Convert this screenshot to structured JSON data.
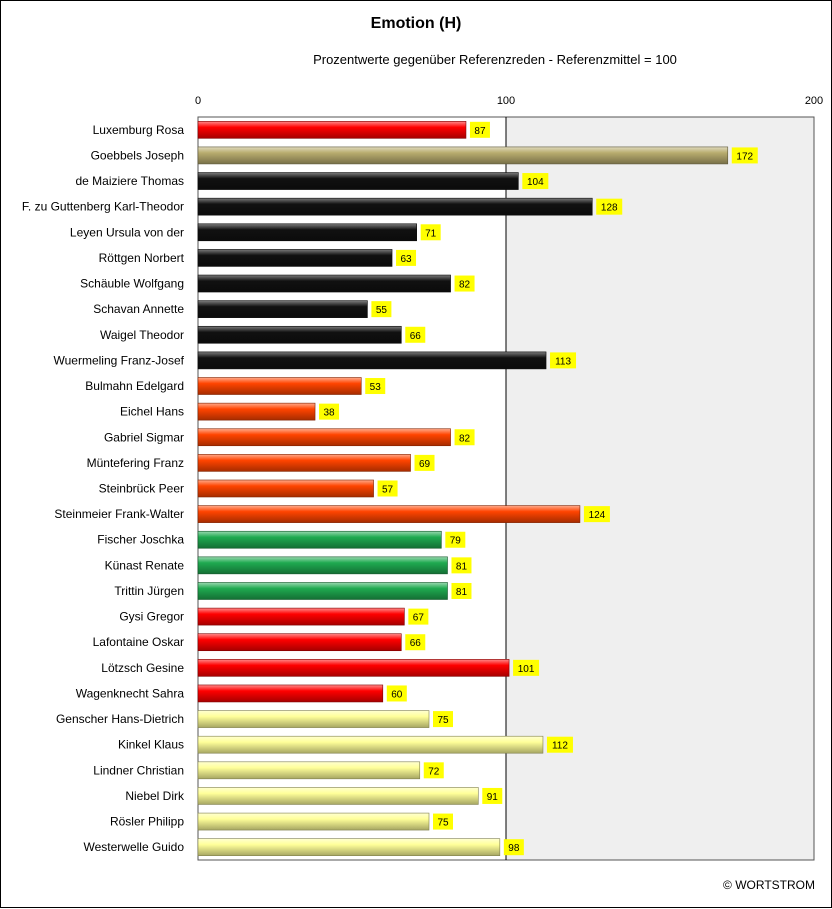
{
  "chart_data": {
    "type": "bar",
    "orientation": "horizontal",
    "title": "Emotion (H)",
    "subtitle": "Prozentwerte  gegenüber Referenzreden - Referenzmittel = 100",
    "xlim": [
      0,
      200
    ],
    "xticks": [
      0,
      100,
      200
    ],
    "reference_value": 100,
    "grid": false,
    "credit": "© WORTSTROM",
    "series": [
      {
        "categories": [
          "Luxemburg Rosa",
          "Goebbels Joseph",
          "de Maiziere Thomas",
          "F. zu Guttenberg Karl-Theodor",
          "Leyen Ursula von der",
          "Röttgen Norbert",
          "Schäuble Wolfgang",
          "Schavan Annette",
          "Waigel Theodor",
          "Wuermeling Franz-Josef",
          "Bulmahn Edelgard",
          "Eichel Hans",
          "Gabriel Sigmar",
          "Müntefering Franz",
          "Steinbrück Peer",
          "Steinmeier Frank-Walter",
          "Fischer Joschka",
          "Künast Renate",
          "Trittin Jürgen",
          "Gysi Gregor",
          "Lafontaine Oskar",
          "Lötzsch Gesine",
          "Wagenknecht Sahra",
          "Genscher Hans-Dietrich",
          "Kinkel Klaus",
          "Lindner Christian",
          "Niebel Dirk",
          "Rösler Philipp",
          "Westerwelle Guido"
        ],
        "values": [
          87,
          172,
          104,
          128,
          71,
          63,
          82,
          55,
          66,
          113,
          53,
          38,
          82,
          69,
          57,
          124,
          79,
          81,
          81,
          67,
          66,
          101,
          60,
          75,
          112,
          72,
          91,
          75,
          98
        ],
        "colors": [
          "#ff0000",
          "#b8ac6e",
          "#111111",
          "#111111",
          "#111111",
          "#111111",
          "#111111",
          "#111111",
          "#111111",
          "#111111",
          "#ff4400",
          "#ff4400",
          "#ff4400",
          "#ff4400",
          "#ff4400",
          "#ff4400",
          "#1faa50",
          "#1faa50",
          "#1faa50",
          "#ff0000",
          "#ff0000",
          "#ff0000",
          "#ff0000",
          "#ffff99",
          "#ffff99",
          "#ffff99",
          "#ffff99",
          "#ffff99",
          "#ffff99"
        ]
      }
    ],
    "label_box_color": "#ffff00",
    "shaded_region_color": "#efefef"
  }
}
